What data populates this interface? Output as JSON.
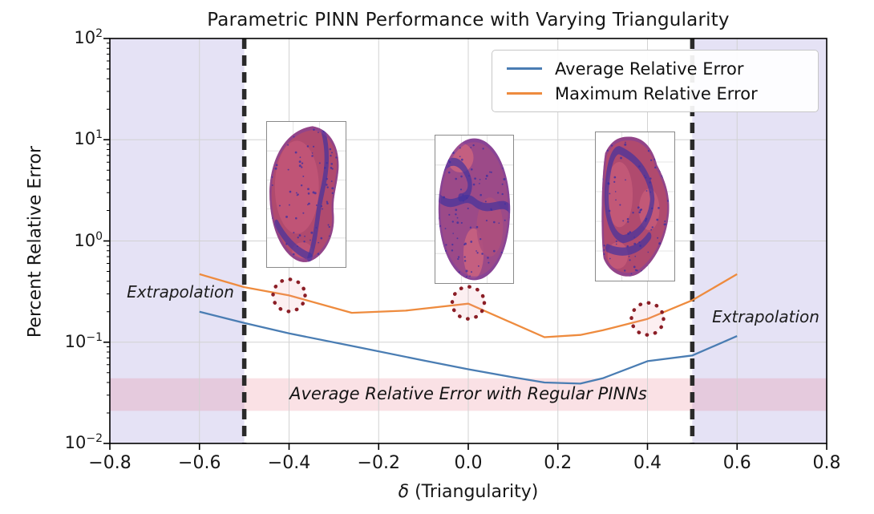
{
  "title": "Parametric PINN Performance with Varying Triangularity",
  "axes": {
    "ylabel": "Percent Relative Error",
    "xlabel_symbol": "δ",
    "xlabel_text": " (Triangularity)"
  },
  "chart_data": {
    "type": "line",
    "title": "Parametric PINN Performance with Varying Triangularity",
    "xlabel": "δ (Triangularity)",
    "ylabel": "Percent Relative Error",
    "x_scale": "linear",
    "y_scale": "log",
    "xlim": [
      -0.8,
      0.8
    ],
    "ylim": [
      0.01,
      100
    ],
    "grid": true,
    "legend_position": "upper right",
    "x_tick_labels": [
      "−0.8",
      "−0.6",
      "−0.4",
      "−0.2",
      "0.0",
      "0.2",
      "0.4",
      "0.6",
      "0.8"
    ],
    "x_ticks": [
      -0.8,
      -0.6,
      -0.4,
      -0.2,
      0.0,
      0.2,
      0.4,
      0.6,
      0.8
    ],
    "y_tick_exponents": [
      2,
      1,
      0,
      -1,
      -2
    ],
    "series": [
      {
        "name": "Average Relative Error",
        "color": "#4a7db3",
        "x": [
          -0.6,
          -0.5,
          -0.4,
          -0.25,
          -0.1,
          0.0,
          0.1,
          0.17,
          0.25,
          0.3,
          0.4,
          0.5,
          0.6
        ],
        "y": [
          0.2,
          0.155,
          0.122,
          0.09,
          0.066,
          0.054,
          0.045,
          0.04,
          0.039,
          0.044,
          0.065,
          0.074,
          0.115
        ]
      },
      {
        "name": "Maximum Relative Error",
        "color": "#ee8b3e",
        "x": [
          -0.6,
          -0.5,
          -0.4,
          -0.26,
          -0.14,
          0.0,
          0.17,
          0.25,
          0.3,
          0.4,
          0.5,
          0.6
        ],
        "y": [
          0.47,
          0.35,
          0.29,
          0.195,
          0.205,
          0.24,
          0.112,
          0.118,
          0.131,
          0.17,
          0.26,
          0.47
        ]
      }
    ],
    "annotations": {
      "extrapolation_left": {
        "label": "Extrapolation",
        "x_range": [
          -0.8,
          -0.5
        ]
      },
      "extrapolation_right": {
        "label": "Extrapolation",
        "x_range": [
          0.5,
          0.8
        ]
      },
      "dashed_lines_x": [
        -0.5,
        0.5
      ],
      "regular_pinn_band": {
        "label": "Average Relative Error with Regular PINNs",
        "y_range": [
          0.021,
          0.044
        ]
      },
      "dotted_circles": [
        {
          "x": -0.4,
          "y": 0.29
        },
        {
          "x": 0.0,
          "y": 0.245
        },
        {
          "x": 0.4,
          "y": 0.17
        }
      ],
      "insets": [
        {
          "name": "plasma-cross-section-negative-triangularity"
        },
        {
          "name": "plasma-cross-section-zero-triangularity"
        },
        {
          "name": "plasma-cross-section-positive-triangularity"
        }
      ]
    }
  },
  "colors": {
    "extrapolation_fill": "#e5e2f5",
    "regular_pinn_band_fill": "rgba(230,120,135,0.22)",
    "dashed_line": "#2a2a2a",
    "dotted_circle": "#8b1e26",
    "grid": "#d2d2d2",
    "spine": "#000000",
    "avg_line": "#4a7db3",
    "max_line": "#ee8b3e",
    "inset_crimson": "#b04a6e",
    "inset_purple": "#9c4a88",
    "inset_band": "#43329e"
  }
}
